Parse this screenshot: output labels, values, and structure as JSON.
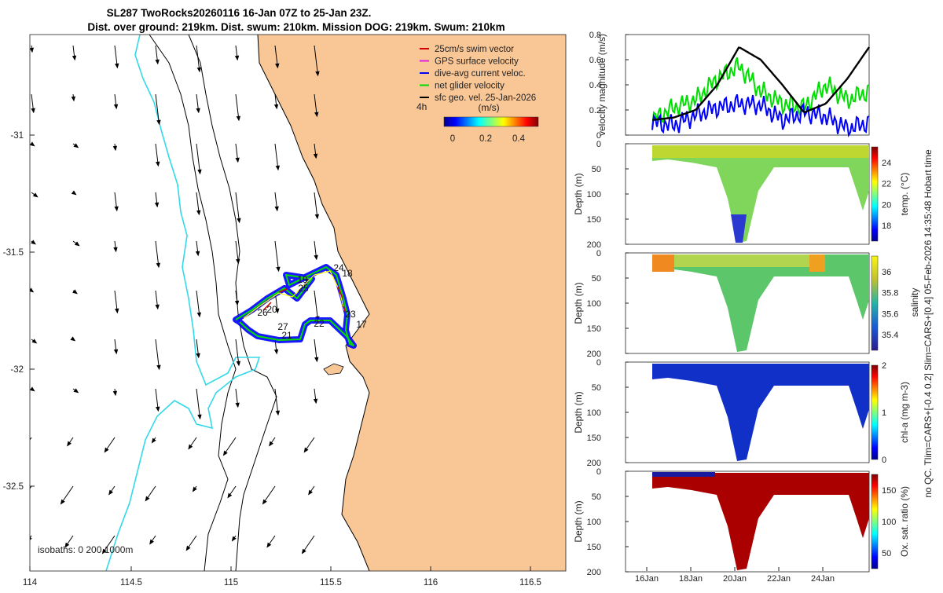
{
  "title": {
    "line1": "SL287 TwoRocks20260116 16-Jan 07Z to 25-Jan 23Z.",
    "line2": "Dist. over ground: 219km. Dist. swum: 210km. Mission DOG: 219km. Swum: 210km"
  },
  "map": {
    "xticks": [
      "114",
      "114.5",
      "115",
      "115.5",
      "116",
      "116.5"
    ],
    "yticks": [
      "-31",
      "-31.5",
      "-32",
      "-32.5"
    ],
    "isobaths_label": "isobaths: 0   200  1000m",
    "legend": [
      {
        "label": "25cm/s swim vector",
        "color": "#d40000"
      },
      {
        "label": "GPS surface velocity",
        "color": "#e020e0"
      },
      {
        "label": "dive-avg current veloc.",
        "color": "#0000ff"
      },
      {
        "label": "net glider velocity",
        "color": "#00dd00"
      },
      {
        "label": "sfc geo. vel. 25-Jan-2026",
        "color": "#000000"
      }
    ],
    "interval_label": "4h",
    "colorbar_title": "(m/s)",
    "colorbar_ticks": [
      "0",
      "0.2",
      "0.4"
    ],
    "day_labels": [
      "24",
      "18",
      "19",
      "25",
      "20",
      "26",
      "27",
      "21",
      "22",
      "23",
      "17"
    ]
  },
  "chart_data": [
    {
      "type": "line",
      "title": "",
      "ylabel": "velocity magnitude (m/s)",
      "ylim": [
        0,
        0.8
      ],
      "yticks": [
        "0",
        "0.2",
        "0.4",
        "0.6",
        "0.8"
      ],
      "x": [
        "16-Jan",
        "17-Jan",
        "18-Jan",
        "19-Jan",
        "20-Jan",
        "21-Jan",
        "22-Jan",
        "23-Jan",
        "24-Jan",
        "25-Jan",
        "26-Jan"
      ],
      "series": [
        {
          "name": "net glider velocity",
          "color": "#00dd00",
          "values": [
            0.12,
            0.22,
            0.28,
            0.45,
            0.55,
            0.35,
            0.25,
            0.22,
            0.4,
            0.28,
            0.35
          ]
        },
        {
          "name": "dive-avg current veloc.",
          "color": "#0000ff",
          "values": [
            0.1,
            0.08,
            0.16,
            0.22,
            0.25,
            0.24,
            0.12,
            0.18,
            0.15,
            0.05,
            0.1
          ]
        },
        {
          "name": "sfc geo. vel.",
          "color": "#000000",
          "values": [
            0.12,
            0.14,
            0.2,
            0.4,
            0.7,
            0.6,
            0.4,
            0.18,
            0.25,
            0.45,
            0.7
          ]
        }
      ]
    },
    {
      "type": "heatmap",
      "ylabel": "Depth (m)",
      "yticks": [
        "0",
        "50",
        "100",
        "150",
        "200"
      ],
      "colorbar_label": "temp. (°C)",
      "colorbar_ticks": [
        "18",
        "20",
        "22",
        "24"
      ],
      "clim": [
        16.5,
        25.5
      ]
    },
    {
      "type": "heatmap",
      "ylabel": "Depth (m)",
      "yticks": [
        "0",
        "50",
        "100",
        "150",
        "200"
      ],
      "colorbar_label": "salinity",
      "colorbar_ticks": [
        "35.4",
        "35.6",
        "35.8",
        "36"
      ],
      "clim": [
        35.25,
        36.15
      ]
    },
    {
      "type": "heatmap",
      "ylabel": "Depth (m)",
      "yticks": [
        "0",
        "50",
        "100",
        "150",
        "200"
      ],
      "colorbar_label": "chl-a (mg m-3)",
      "colorbar_ticks": [
        "0",
        "1",
        "2"
      ],
      "clim": [
        0,
        2
      ]
    },
    {
      "type": "heatmap",
      "ylabel": "Depth (m)",
      "yticks": [
        "0",
        "50",
        "100",
        "150",
        "200"
      ],
      "colorbar_label": "Ox. sat. ratio (%)",
      "colorbar_ticks": [
        "50",
        "100",
        "150"
      ],
      "clim": [
        25,
        175
      ]
    }
  ],
  "time_axis": {
    "ticks": [
      "16Jan",
      "18Jan",
      "20Jan",
      "22Jan",
      "24Jan"
    ]
  },
  "side_note": {
    "line1": "salinity",
    "line2": "no QC. Tlim=CARS+[-0.4 0.2] Slim=CARS+[0.4] 05-Feb-2026 14:35:48 Hobart time"
  },
  "colors": {
    "land": "#f9c696",
    "coast200": "#000000",
    "coast1000": "#000000",
    "deep": "#33d9e8"
  }
}
